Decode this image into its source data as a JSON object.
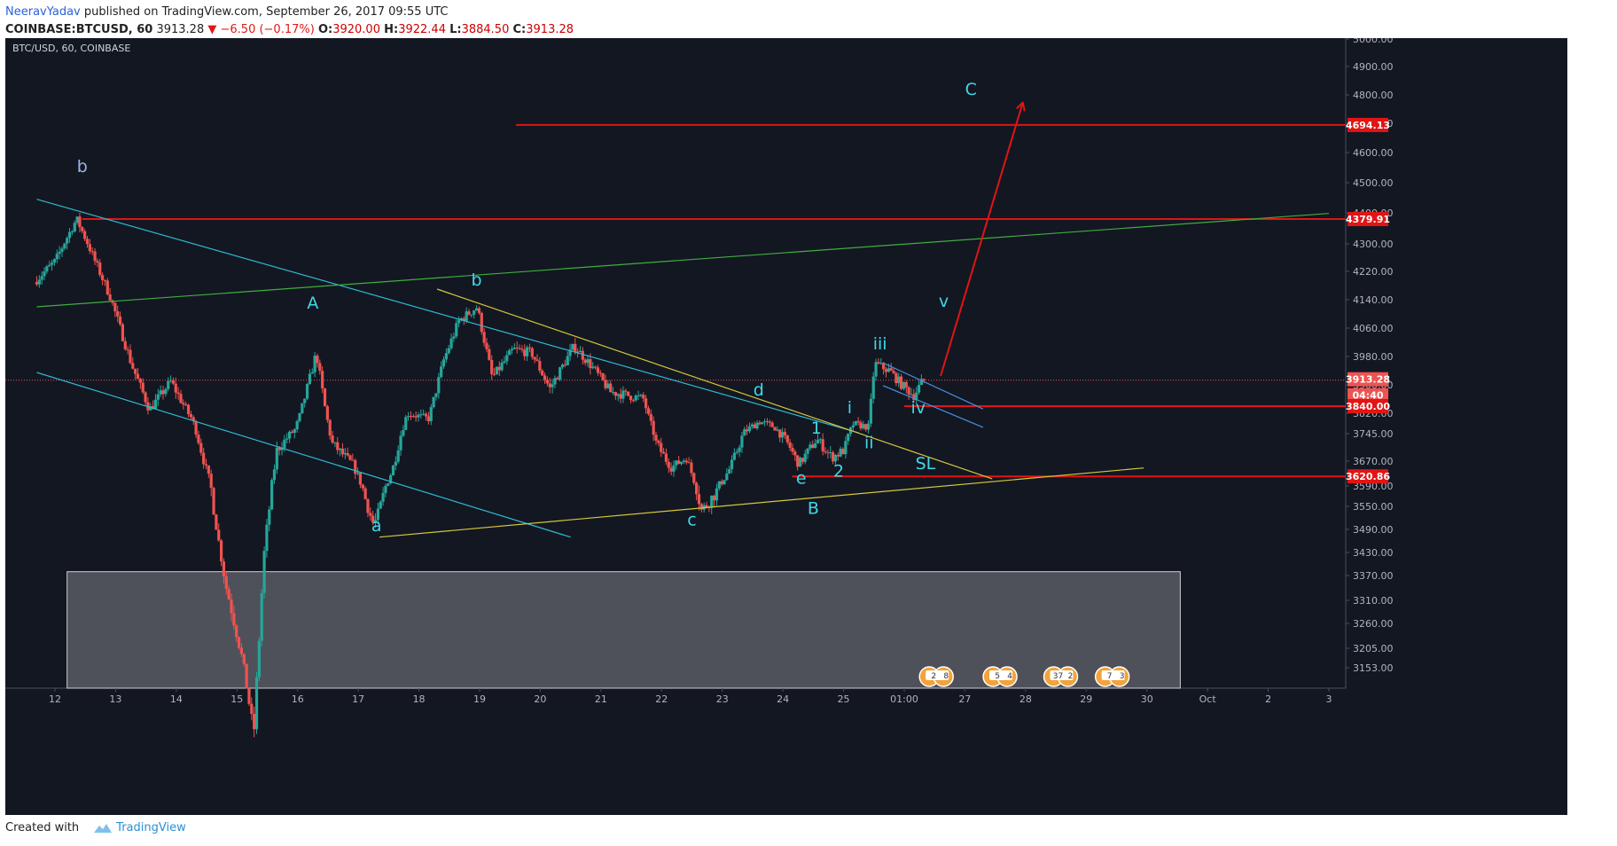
{
  "header": {
    "author": "NeeravYadav",
    "published": "published on TradingView.com, September 26, 2017 09:55 UTC",
    "symbol": "COINBASE:BTCUSD, 60",
    "last": "3913.28",
    "change": "−6.50 (−0.17%)",
    "open_label": "O:",
    "open": "3920.00",
    "high_label": "H:",
    "high": "3922.44",
    "low_label": "L:",
    "low": "3884.50",
    "close_label": "C:",
    "close": "3913.28"
  },
  "footer": {
    "created_with": "Created with",
    "brand": "TradingView"
  },
  "colors": {
    "background": "#131722",
    "up": "#26a69a",
    "down": "#ef5350",
    "red_line": "#e21414",
    "cyan_line": "#2fb8cf",
    "yellow_line": "#d4c83a",
    "green_line": "#3fae3f",
    "label": "#40d8e6",
    "label_b": "#9cb4e6"
  },
  "chart_data": {
    "type": "candlestick",
    "instrument": "BTC/USD, 60, COINBASE",
    "x_ticks": [
      "12",
      "13",
      "14",
      "15",
      "16",
      "17",
      "18",
      "19",
      "20",
      "21",
      "22",
      "23",
      "24",
      "25",
      "01:00",
      "27",
      "28",
      "29",
      "30",
      "Oct",
      "2",
      "3"
    ],
    "y_ticks": [
      "5000.00",
      "4900.00",
      "4800.00",
      "4700.00",
      "4600.00",
      "4500.00",
      "4400.00",
      "4300.00",
      "4220.00",
      "4140.00",
      "4060.00",
      "3980.00",
      "3900.00",
      "3820.00",
      "3745.00",
      "3670.00",
      "3590.00",
      "3550.00",
      "3490.00",
      "3430.00",
      "3370.00",
      "3310.00",
      "3260.00",
      "3205.00",
      "3153.00"
    ],
    "price_badges": [
      {
        "value": "4694.13",
        "color": "#e21414"
      },
      {
        "value": "4379.91",
        "color": "#e21414"
      },
      {
        "value": "3913.28",
        "color": "#ef5350"
      },
      {
        "value": "04:40",
        "color": "#ef5350"
      },
      {
        "value": "3840.00",
        "color": "#e21414"
      },
      {
        "value": "3620.86",
        "color": "#e21414"
      }
    ],
    "horizontal_levels": [
      {
        "price": 4694.13,
        "from_day": 19.6
      },
      {
        "price": 4379.91,
        "from_day": 12.45
      },
      {
        "price": 3840.0,
        "from_day": 26.0
      },
      {
        "price": 3620.86,
        "from_day": 24.15
      }
    ],
    "price_path": [
      {
        "day": 11.7,
        "price": 4190
      },
      {
        "day": 12.05,
        "price": 4250
      },
      {
        "day": 12.4,
        "price": 4380
      },
      {
        "day": 12.7,
        "price": 4250
      },
      {
        "day": 12.95,
        "price": 4150
      },
      {
        "day": 13.3,
        "price": 3960
      },
      {
        "day": 13.6,
        "price": 3830
      },
      {
        "day": 13.95,
        "price": 3910
      },
      {
        "day": 14.3,
        "price": 3800
      },
      {
        "day": 14.6,
        "price": 3600
      },
      {
        "day": 14.85,
        "price": 3350
      },
      {
        "day": 15.1,
        "price": 3200
      },
      {
        "day": 15.32,
        "price": 3010
      },
      {
        "day": 15.5,
        "price": 3450
      },
      {
        "day": 15.7,
        "price": 3700
      },
      {
        "day": 16.0,
        "price": 3760
      },
      {
        "day": 16.35,
        "price": 3990
      },
      {
        "day": 16.6,
        "price": 3720
      },
      {
        "day": 16.95,
        "price": 3660
      },
      {
        "day": 17.3,
        "price": 3500
      },
      {
        "day": 17.6,
        "price": 3640
      },
      {
        "day": 17.85,
        "price": 3820
      },
      {
        "day": 18.2,
        "price": 3800
      },
      {
        "day": 18.45,
        "price": 3970
      },
      {
        "day": 18.7,
        "price": 4080
      },
      {
        "day": 19.0,
        "price": 4120
      },
      {
        "day": 19.25,
        "price": 3920
      },
      {
        "day": 19.6,
        "price": 4000
      },
      {
        "day": 19.9,
        "price": 3990
      },
      {
        "day": 20.2,
        "price": 3890
      },
      {
        "day": 20.6,
        "price": 4010
      },
      {
        "day": 20.9,
        "price": 3950
      },
      {
        "day": 21.2,
        "price": 3880
      },
      {
        "day": 21.5,
        "price": 3870
      },
      {
        "day": 21.75,
        "price": 3860
      },
      {
        "day": 21.95,
        "price": 3720
      },
      {
        "day": 22.2,
        "price": 3650
      },
      {
        "day": 22.45,
        "price": 3680
      },
      {
        "day": 22.7,
        "price": 3540
      },
      {
        "day": 22.95,
        "price": 3580
      },
      {
        "day": 23.15,
        "price": 3640
      },
      {
        "day": 23.4,
        "price": 3750
      },
      {
        "day": 23.65,
        "price": 3790
      },
      {
        "day": 23.9,
        "price": 3770
      },
      {
        "day": 24.15,
        "price": 3710
      },
      {
        "day": 24.3,
        "price": 3660
      },
      {
        "day": 24.6,
        "price": 3730
      },
      {
        "day": 24.85,
        "price": 3680
      },
      {
        "day": 25.05,
        "price": 3700
      },
      {
        "day": 25.2,
        "price": 3780
      },
      {
        "day": 25.45,
        "price": 3770
      },
      {
        "day": 25.55,
        "price": 3960
      },
      {
        "day": 25.8,
        "price": 3940
      },
      {
        "day": 26.0,
        "price": 3900
      },
      {
        "day": 26.2,
        "price": 3870
      },
      {
        "day": 26.35,
        "price": 3913
      }
    ],
    "trend_lines": [
      {
        "name": "cyan-channel-upper",
        "color": "#2fb8cf",
        "from": {
          "day": 11.7,
          "price": 4445
        },
        "to": {
          "day": 25.25,
          "price": 3748
        }
      },
      {
        "name": "cyan-channel-lower",
        "color": "#2fb8cf",
        "from": {
          "day": 11.7,
          "price": 3935
        },
        "to": {
          "day": 20.5,
          "price": 3470
        }
      },
      {
        "name": "green-line",
        "color": "#3fae3f",
        "from": {
          "day": 11.7,
          "price": 4120
        },
        "to": {
          "day": 33.0,
          "price": 4398
        }
      },
      {
        "name": "yellow-upper",
        "color": "#d4c83a",
        "from": {
          "day": 18.3,
          "price": 4170
        },
        "to": {
          "day": 27.45,
          "price": 3613
        }
      },
      {
        "name": "yellow-lower",
        "color": "#d4c83a",
        "from": {
          "day": 17.35,
          "price": 3470
        },
        "to": {
          "day": 29.95,
          "price": 3648
        }
      },
      {
        "name": "blue-flag-upper",
        "color": "#4a8fe0",
        "from": {
          "day": 25.65,
          "price": 3962
        },
        "to": {
          "day": 27.3,
          "price": 3832
        }
      },
      {
        "name": "blue-flag-lower",
        "color": "#4a8fe0",
        "from": {
          "day": 25.65,
          "price": 3898
        },
        "to": {
          "day": 27.3,
          "price": 3768
        }
      },
      {
        "name": "projection-arrow",
        "color": "#e21414",
        "from": {
          "day": 26.6,
          "price": 3925
        },
        "to": {
          "day": 27.95,
          "price": 4770
        },
        "arrow": true
      }
    ],
    "zone": {
      "from_day": 12.2,
      "to_day": 30.55,
      "price_top": 3380,
      "price_bottom": 3110
    },
    "wave_labels": [
      {
        "text": "b",
        "day": 12.45,
        "price": 4535,
        "color": "#9cb4e6"
      },
      {
        "text": "A",
        "day": 16.25,
        "price": 4115,
        "color": "#40d8e6"
      },
      {
        "text": "a",
        "day": 17.3,
        "price": 3485,
        "color": "#40d8e6"
      },
      {
        "text": "b",
        "day": 18.95,
        "price": 4180,
        "color": "#40d8e6"
      },
      {
        "text": "c",
        "day": 22.5,
        "price": 3500,
        "color": "#40d8e6"
      },
      {
        "text": "d",
        "day": 23.6,
        "price": 3870,
        "color": "#40d8e6"
      },
      {
        "text": "e",
        "day": 24.3,
        "price": 3597,
        "color": "#40d8e6"
      },
      {
        "text": "B",
        "day": 24.5,
        "price": 3530,
        "color": "#40d8e6"
      },
      {
        "text": "1",
        "day": 24.55,
        "price": 3745,
        "color": "#40d8e6"
      },
      {
        "text": "2",
        "day": 24.92,
        "price": 3620,
        "color": "#40d8e6"
      },
      {
        "text": "i",
        "day": 25.1,
        "price": 3820,
        "color": "#40d8e6"
      },
      {
        "text": "ii",
        "day": 25.42,
        "price": 3705,
        "color": "#40d8e6"
      },
      {
        "text": "iii",
        "day": 25.6,
        "price": 4000,
        "color": "#40d8e6"
      },
      {
        "text": "iv",
        "day": 26.23,
        "price": 3820,
        "color": "#40d8e6"
      },
      {
        "text": "SL",
        "day": 26.35,
        "price": 3645,
        "color": "#40d8e6"
      },
      {
        "text": "v",
        "day": 26.65,
        "price": 4120,
        "color": "#40d8e6"
      },
      {
        "text": "C",
        "day": 27.1,
        "price": 4800,
        "color": "#40d8e6"
      }
    ],
    "event_markers": [
      {
        "count": "2",
        "sub": "8",
        "day": 26.5
      },
      {
        "count": "5",
        "sub": "4",
        "day": 27.55
      },
      {
        "count": "37",
        "sub": "2",
        "day": 28.55
      },
      {
        "count": "7",
        "sub": "3",
        "day": 29.4
      }
    ]
  }
}
